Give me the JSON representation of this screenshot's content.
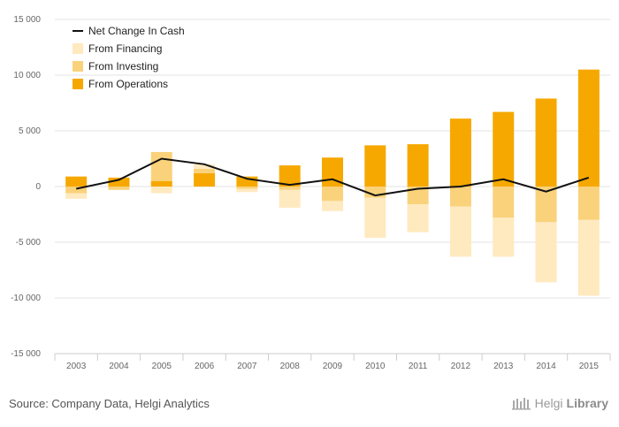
{
  "chart_data": {
    "type": "bar",
    "categories": [
      "2003",
      "2004",
      "2005",
      "2006",
      "2007",
      "2008",
      "2009",
      "2010",
      "2011",
      "2012",
      "2013",
      "2014",
      "2015"
    ],
    "series": [
      {
        "name": "From Operations",
        "kind": "bar",
        "color": "#F6A800",
        "values": [
          900,
          800,
          500,
          1200,
          900,
          1900,
          2600,
          3700,
          3800,
          6100,
          6700,
          7900,
          10500
        ]
      },
      {
        "name": "From Investing",
        "kind": "bar",
        "color": "#F9D27B",
        "values": [
          -600,
          -300,
          2600,
          400,
          -200,
          -300,
          -1300,
          -1000,
          -1600,
          -1800,
          -2800,
          -3200,
          -3000
        ]
      },
      {
        "name": "From Financing",
        "kind": "bar",
        "color": "#FFE9BF",
        "values": [
          -500,
          0,
          -600,
          400,
          -300,
          -1600,
          -900,
          -3600,
          -2500,
          -4500,
          -3500,
          -5400,
          -6800
        ]
      },
      {
        "name": "Net Change In Cash",
        "kind": "line",
        "color": "#111111",
        "values": [
          -200,
          600,
          2500,
          2000,
          700,
          150,
          650,
          -800,
          -200,
          0,
          650,
          -450,
          800
        ]
      }
    ],
    "y_ticks": [
      "15 000",
      "10 000",
      "5 000",
      "0",
      "-5 000",
      "-10 000",
      "-15 000"
    ],
    "ylim": [
      -15000,
      15000
    ],
    "grid": true,
    "legend_position": "top-left",
    "legend_order": [
      "Net Change In Cash",
      "From Financing",
      "From Investing",
      "From Operations"
    ]
  },
  "footer": {
    "source": "Source: Company Data, Helgi Analytics",
    "brand_light": "Helgi",
    "brand_bold": "Library"
  }
}
